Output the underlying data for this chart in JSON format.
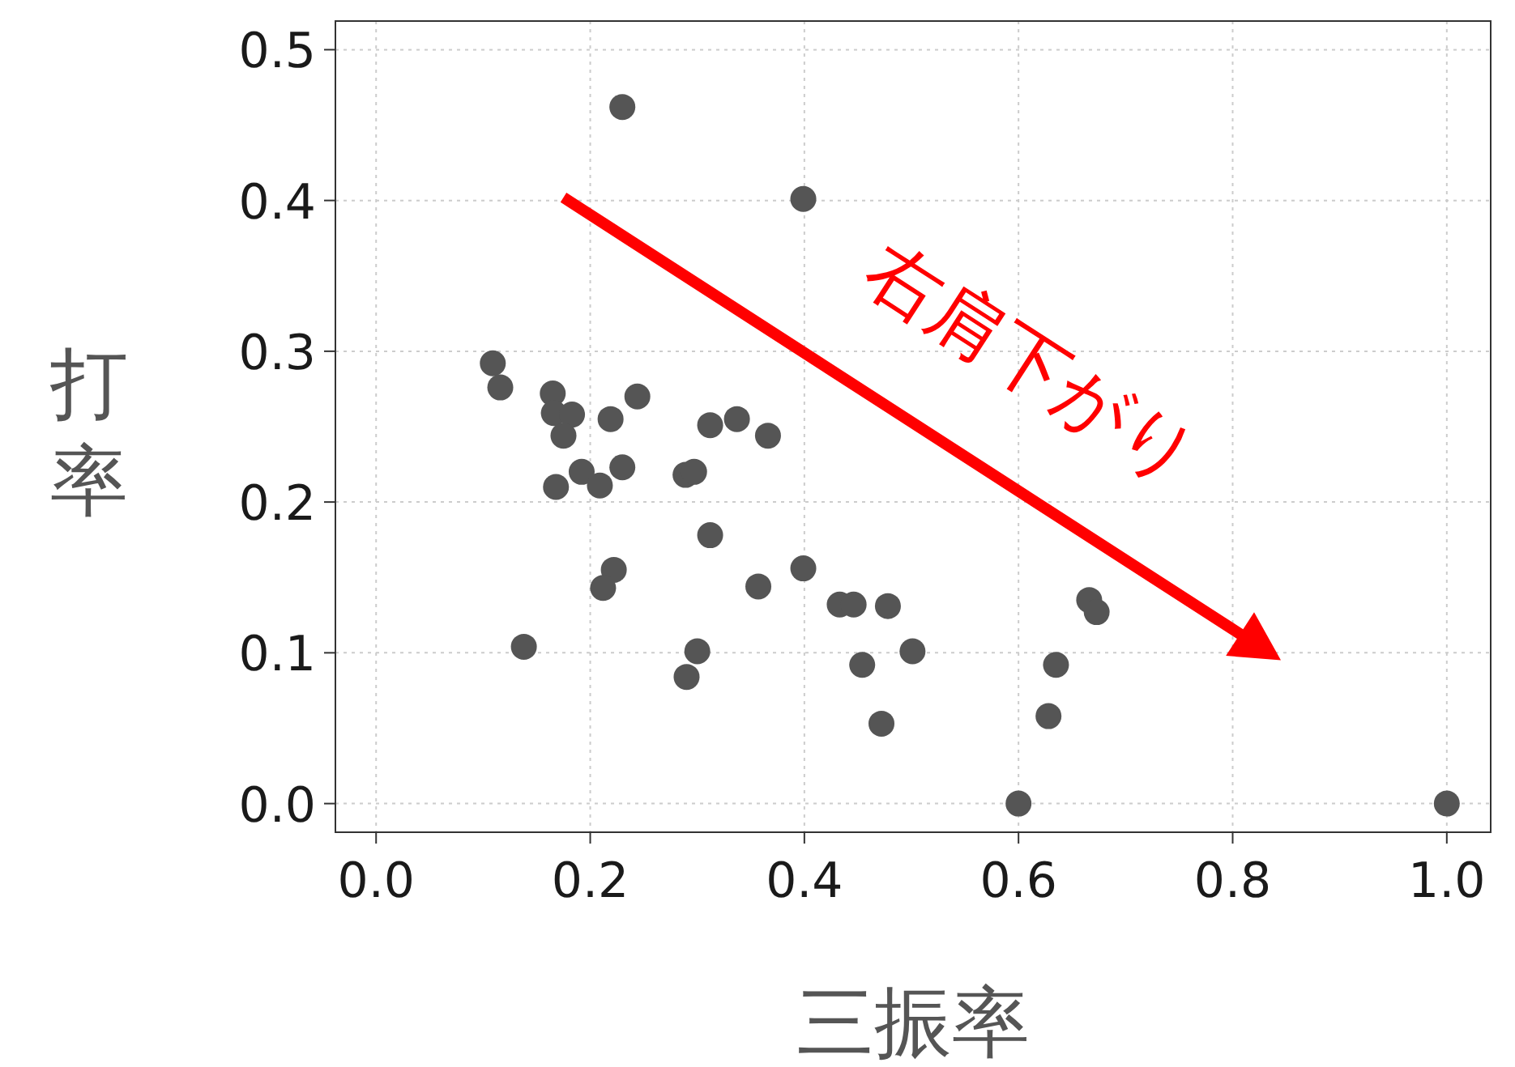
{
  "chart_data": {
    "type": "scatter",
    "xlabel": "三振率",
    "ylabel": "打率",
    "x": [
      0.109,
      0.116,
      0.165,
      0.166,
      0.183,
      0.175,
      0.219,
      0.244,
      0.192,
      0.209,
      0.23,
      0.168,
      0.289,
      0.297,
      0.312,
      0.337,
      0.366,
      0.312,
      0.222,
      0.212,
      0.138,
      0.357,
      0.3,
      0.29,
      0.23,
      0.399,
      0.399,
      0.433,
      0.446,
      0.478,
      0.454,
      0.501,
      0.472,
      0.6,
      0.635,
      0.628,
      0.666,
      0.673,
      1.0
    ],
    "values": [
      0.292,
      0.276,
      0.272,
      0.259,
      0.258,
      0.244,
      0.255,
      0.27,
      0.22,
      0.211,
      0.223,
      0.21,
      0.218,
      0.22,
      0.251,
      0.255,
      0.244,
      0.178,
      0.155,
      0.143,
      0.104,
      0.144,
      0.101,
      0.084,
      0.462,
      0.401,
      0.156,
      0.132,
      0.132,
      0.131,
      0.092,
      0.101,
      0.053,
      0.0,
      0.092,
      0.058,
      0.135,
      0.127,
      0.0
    ],
    "color": "#555555",
    "marker": "circle",
    "xlim": [
      -0.038,
      1.041
    ],
    "ylim": [
      -0.019,
      0.519
    ],
    "xticks": [
      {
        "value": 0,
        "label": "0.0"
      },
      0.2,
      0.4,
      0.6,
      0.8,
      {
        "value": 1,
        "label": "1.0"
      }
    ],
    "yticks": [
      {
        "value": 0,
        "label": "0.0"
      },
      0.1,
      0.2,
      0.3,
      0.4,
      0.5
    ],
    "grid": true,
    "annotations": [
      "右肩下がり"
    ]
  }
}
